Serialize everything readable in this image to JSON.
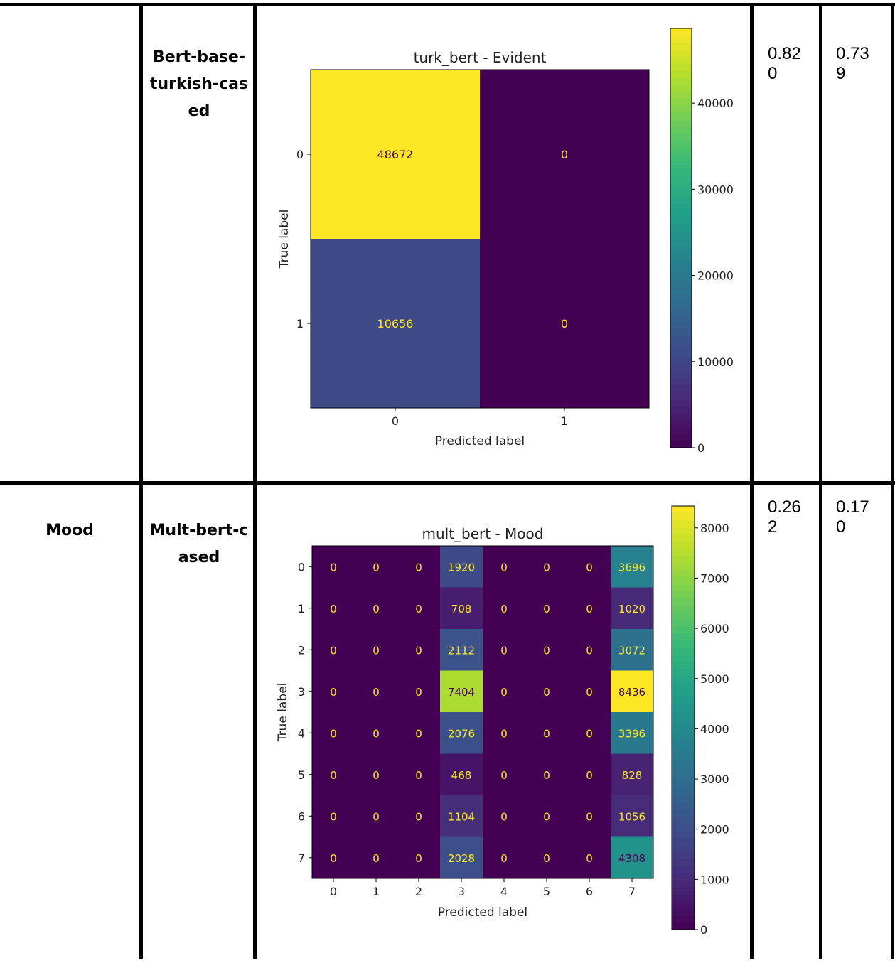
{
  "rows": [
    {
      "task": "",
      "model": "Bert-base-turkish-cased",
      "metric1": "0.820",
      "metric2": "0.739",
      "chart_data": {
        "type": "heatmap",
        "title": "turk_bert - Evident",
        "xlabel": "Predicted label",
        "ylabel": "True label",
        "x_categories": [
          "0",
          "1"
        ],
        "y_categories": [
          "0",
          "1"
        ],
        "values": [
          [
            48672,
            0
          ],
          [
            10656,
            0
          ]
        ],
        "colorbar_ticks": [
          0,
          10000,
          20000,
          30000,
          40000
        ],
        "colorbar_range": [
          0,
          48672
        ],
        "colormap": "viridis"
      }
    },
    {
      "task": "Mood",
      "model": "Mult-bert-cased",
      "metric1": "0.262",
      "metric2": "0.170",
      "chart_data": {
        "type": "heatmap",
        "title": "mult_bert - Mood",
        "xlabel": "Predicted label",
        "ylabel": "True label",
        "x_categories": [
          "0",
          "1",
          "2",
          "3",
          "4",
          "5",
          "6",
          "7"
        ],
        "y_categories": [
          "0",
          "1",
          "2",
          "3",
          "4",
          "5",
          "6",
          "7"
        ],
        "values": [
          [
            0,
            0,
            0,
            1920,
            0,
            0,
            0,
            3696
          ],
          [
            0,
            0,
            0,
            708,
            0,
            0,
            0,
            1020
          ],
          [
            0,
            0,
            0,
            2112,
            0,
            0,
            0,
            3072
          ],
          [
            0,
            0,
            0,
            7404,
            0,
            0,
            0,
            8436
          ],
          [
            0,
            0,
            0,
            2076,
            0,
            0,
            0,
            3396
          ],
          [
            0,
            0,
            0,
            468,
            0,
            0,
            0,
            828
          ],
          [
            0,
            0,
            0,
            1104,
            0,
            0,
            0,
            1056
          ],
          [
            0,
            0,
            0,
            2028,
            0,
            0,
            0,
            4308
          ]
        ],
        "colorbar_ticks": [
          0,
          1000,
          2000,
          3000,
          4000,
          5000,
          6000,
          7000,
          8000
        ],
        "colorbar_range": [
          0,
          8436
        ],
        "colormap": "viridis"
      }
    }
  ]
}
